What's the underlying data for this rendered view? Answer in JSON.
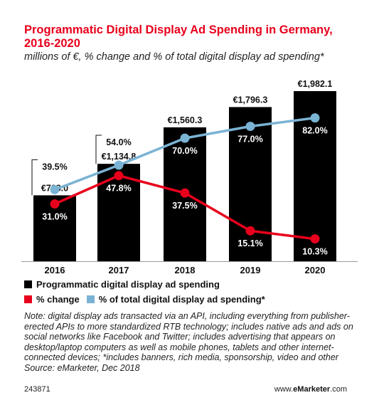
{
  "title": "Programmatic Digital Display Ad Spending in Germany, 2016-2020",
  "subtitle": "millions of €, % change and % of total digital display ad spending*",
  "colors": {
    "title": "#e8001c",
    "bar": "#000000",
    "pct_change": "#e8001c",
    "pct_total": "#7ab3d4"
  },
  "chart_data": {
    "type": "bar",
    "categories": [
      "2016",
      "2017",
      "2018",
      "2019",
      "2020"
    ],
    "series": [
      {
        "name": "Programmatic digital display ad spending",
        "type": "bar",
        "values": [
          768.0,
          1134.8,
          1560.3,
          1796.3,
          1982.1
        ],
        "labels": [
          "€768.0",
          "€1,134.8",
          "€1,560.3",
          "€1,796.3",
          "€1,982.1"
        ]
      },
      {
        "name": "% change",
        "type": "line",
        "values": [
          31.0,
          47.8,
          37.5,
          15.1,
          10.3
        ],
        "labels": [
          "31.0%",
          "47.8%",
          "37.5%",
          "15.1%",
          "10.3%"
        ]
      },
      {
        "name": "% of total digital display ad spending*",
        "type": "line",
        "values": [
          39.5,
          54.0,
          70.0,
          77.0,
          82.0
        ],
        "labels": [
          "39.5%",
          "54.0%",
          "70.0%",
          "77.0%",
          "82.0%"
        ]
      }
    ],
    "legend_position": "bottom",
    "grid": false
  },
  "legend": {
    "bar_label": "Programmatic digital display ad spending",
    "pct_change_label": "% change",
    "pct_total_label": "% of total digital display ad spending*"
  },
  "note": "Note: digital display ads transacted via an API, including everything from publisher-erected APIs to more standardized RTB technology; includes native ads and ads on social networks like Facebook and Twitter; includes advertising that appears on desktop/laptop computers as well as mobile phones, tablets and other internet-connected devices; *includes banners, rich media, sponsorship, video and other",
  "source": "Source: eMarketer, Dec 2018",
  "chart_id": "243871",
  "brand": {
    "prefix": "www.",
    "name": "eMarketer",
    "suffix": ".com"
  }
}
